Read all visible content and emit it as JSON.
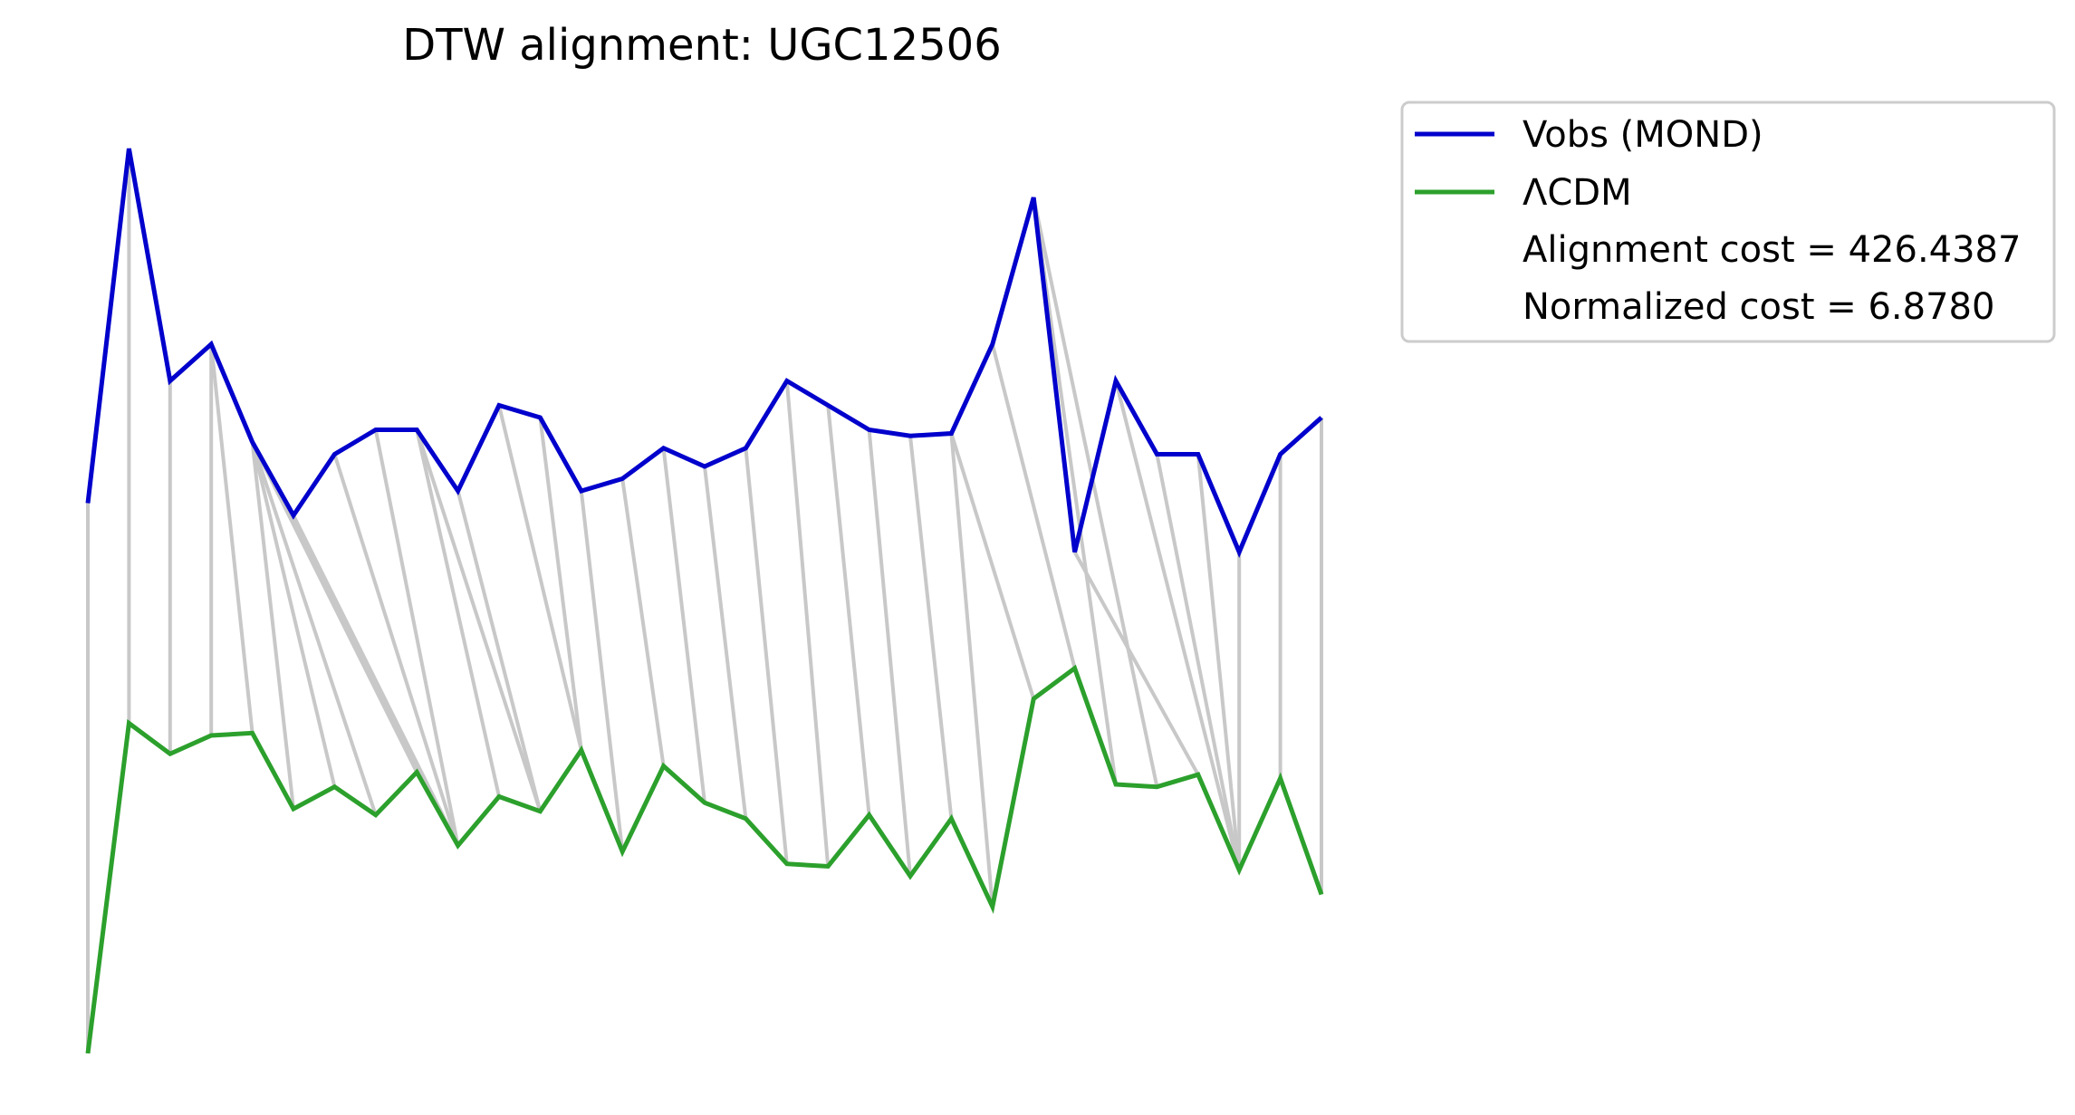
{
  "chart_data": {
    "type": "line",
    "title": "DTW alignment: UGC12506",
    "xlabel": "",
    "ylabel": "",
    "axes_visible": false,
    "grid": false,
    "legend_position": "outside-top-right",
    "x": [
      0,
      1,
      2,
      3,
      4,
      5,
      6,
      7,
      8,
      9,
      10,
      11,
      12,
      13,
      14,
      15,
      16,
      17,
      18,
      19,
      20,
      21,
      22,
      23,
      24,
      25,
      26,
      27,
      28,
      29,
      30
    ],
    "ylim": [
      -1.2,
      6.8
    ],
    "series": [
      {
        "name": "Vobs (MOND)",
        "color": "#0000cc",
        "values": [
          3.5,
          6.4,
          4.5,
          4.8,
          4.0,
          3.4,
          3.9,
          4.1,
          4.1,
          3.6,
          4.3,
          4.2,
          3.6,
          3.7,
          3.95,
          3.8,
          3.95,
          4.5,
          4.3,
          4.1,
          4.05,
          4.07,
          4.8,
          6.0,
          3.1,
          4.5,
          3.9,
          3.9,
          3.1,
          3.9,
          4.2
        ]
      },
      {
        "name": "ΛCDM",
        "color": "#2ca02c",
        "values": [
          -1.0,
          1.7,
          1.45,
          1.6,
          1.62,
          1.0,
          1.18,
          0.95,
          1.3,
          0.7,
          1.1,
          0.98,
          1.48,
          0.65,
          1.35,
          1.05,
          0.92,
          0.55,
          0.53,
          0.95,
          0.45,
          0.92,
          0.2,
          1.9,
          2.15,
          1.2,
          1.18,
          1.28,
          0.5,
          1.25,
          0.3
        ]
      }
    ],
    "alignment_pairs": [
      [
        0,
        0
      ],
      [
        1,
        1
      ],
      [
        2,
        2
      ],
      [
        3,
        3
      ],
      [
        3,
        4
      ],
      [
        4,
        5
      ],
      [
        4,
        6
      ],
      [
        4,
        7
      ],
      [
        4,
        8
      ],
      [
        4,
        9
      ],
      [
        5,
        9
      ],
      [
        6,
        9
      ],
      [
        7,
        9
      ],
      [
        8,
        10
      ],
      [
        8,
        11
      ],
      [
        9,
        11
      ],
      [
        10,
        12
      ],
      [
        11,
        12
      ],
      [
        12,
        13
      ],
      [
        13,
        14
      ],
      [
        14,
        15
      ],
      [
        15,
        16
      ],
      [
        16,
        17
      ],
      [
        17,
        18
      ],
      [
        18,
        19
      ],
      [
        19,
        20
      ],
      [
        20,
        21
      ],
      [
        21,
        22
      ],
      [
        21,
        23
      ],
      [
        22,
        24
      ],
      [
        23,
        25
      ],
      [
        23,
        26
      ],
      [
        24,
        27
      ],
      [
        25,
        28
      ],
      [
        26,
        28
      ],
      [
        27,
        28
      ],
      [
        28,
        28
      ],
      [
        29,
        29
      ],
      [
        30,
        30
      ]
    ],
    "alignment_line_color": "#c8c8c8",
    "annotations": [
      "Alignment cost = 426.4387",
      "Normalized cost = 6.8780"
    ]
  }
}
